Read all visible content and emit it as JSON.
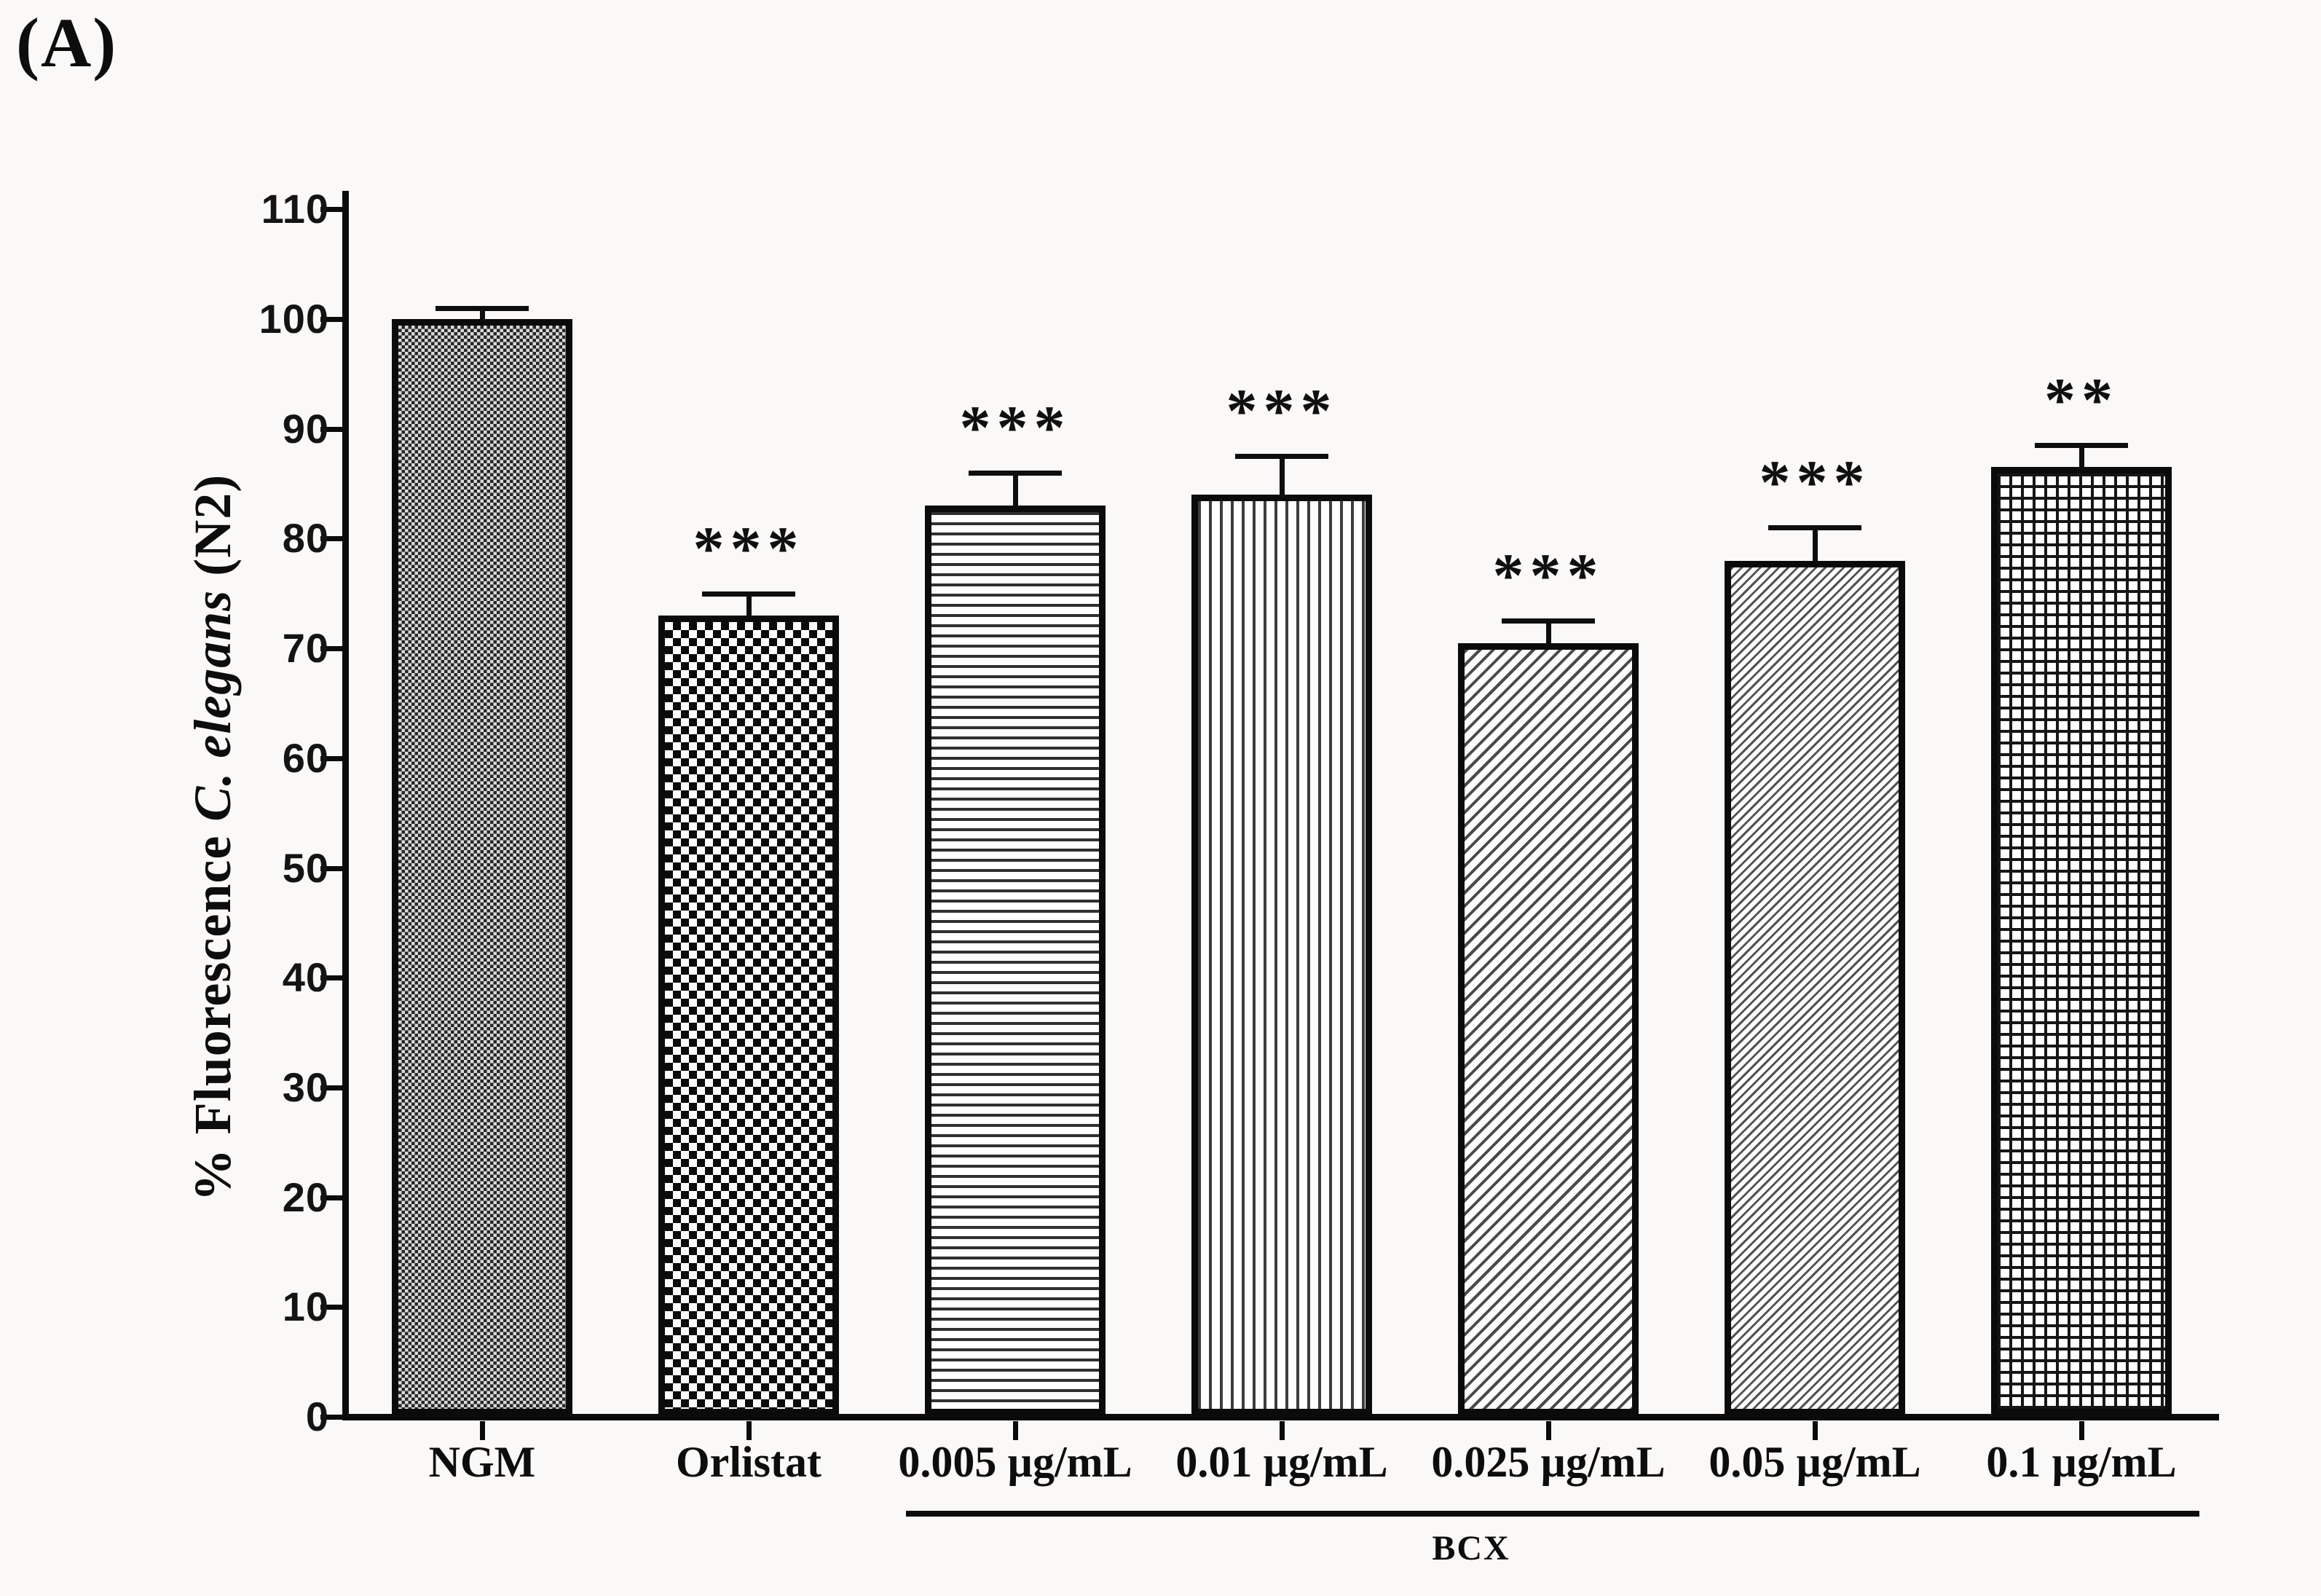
{
  "figure": {
    "panel_label": "(A)"
  },
  "y_axis": {
    "title_prefix": "% Fluorescence ",
    "title_italic": "C. elegans",
    "title_suffix": " (N2)"
  },
  "chart_data": {
    "type": "bar",
    "title": "",
    "xlabel": "",
    "ylabel": "% Fluorescence C. elegans (N2)",
    "ylim": [
      0,
      110
    ],
    "ytick_step": 10,
    "yticks": [
      0,
      10,
      20,
      30,
      40,
      50,
      60,
      70,
      80,
      90,
      100,
      110
    ],
    "grid": false,
    "legend": null,
    "categories": [
      "NGM",
      "Orlistat",
      "0.005 µg/mL",
      "0.01 µg/mL",
      "0.025 µg/mL",
      "0.05 µg/mL",
      "0.1 µg/mL"
    ],
    "values": [
      100,
      73,
      83,
      84,
      70.5,
      78,
      86.5
    ],
    "errors": [
      1,
      2,
      3,
      3.5,
      2,
      3,
      2
    ],
    "error_type": "upper-SEM",
    "significance": [
      "",
      "***",
      "***",
      "***",
      "***",
      "***",
      "**"
    ],
    "patterns": [
      "dense-checker",
      "checkerboard",
      "horizontal-lines",
      "vertical-lines",
      "diagonal-hatch-coarse",
      "diagonal-hatch-fine",
      "square-grid"
    ],
    "bar_outline_color": "#0b0b0b",
    "group": {
      "label": "BCX",
      "from_category_index": 2,
      "to_category_index": 6
    }
  }
}
